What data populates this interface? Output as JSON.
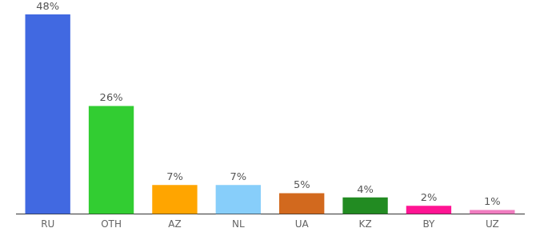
{
  "chart_data": {
    "type": "bar",
    "categories": [
      "RU",
      "OTH",
      "AZ",
      "NL",
      "UA",
      "KZ",
      "BY",
      "UZ"
    ],
    "values": [
      48,
      26,
      7,
      7,
      5,
      4,
      2,
      1
    ],
    "value_labels": [
      "48%",
      "26%",
      "7%",
      "7%",
      "5%",
      "4%",
      "2%",
      "1%"
    ],
    "colors": [
      "#4169e1",
      "#32cd32",
      "#ffa500",
      "#87cefa",
      "#d2691e",
      "#228b22",
      "#ff1493",
      "#f07cc0"
    ],
    "ylim": [
      0,
      48
    ],
    "grid": false,
    "data_labels": true,
    "tick_labels": "x"
  }
}
